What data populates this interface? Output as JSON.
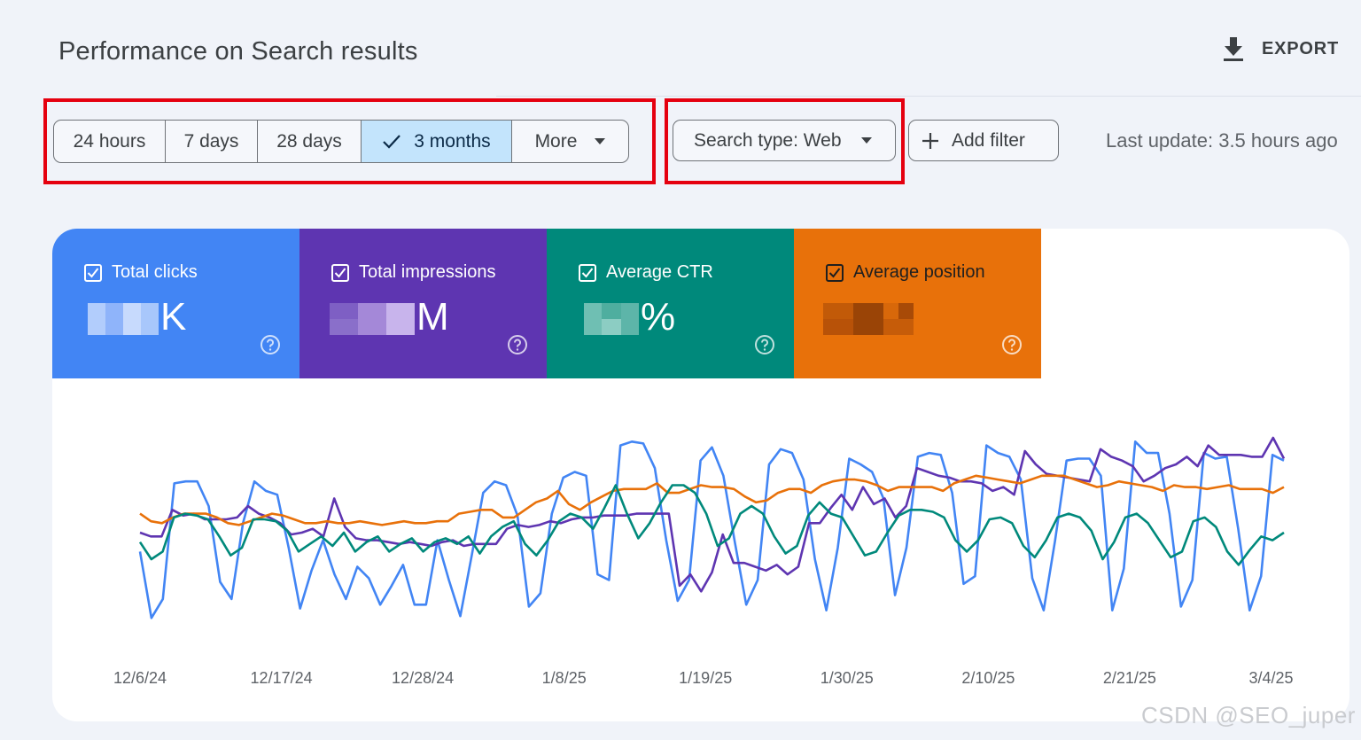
{
  "header": {
    "title": "Performance on Search results",
    "export_label": "EXPORT"
  },
  "date_range": {
    "options": [
      "24 hours",
      "7 days",
      "28 days",
      "3 months",
      "More"
    ],
    "selected": "3 months"
  },
  "filters": {
    "search_type": "Search type: Web",
    "add_filter": "Add filter",
    "last_update": "Last update: 3.5 hours ago"
  },
  "metrics": [
    {
      "label": "Total clicks",
      "suffix": "K",
      "color": "#4285f4",
      "checked": true
    },
    {
      "label": "Total impressions",
      "suffix": "M",
      "color": "#5e35b1",
      "checked": true
    },
    {
      "label": "Average CTR",
      "suffix": "%",
      "color": "#00897b",
      "checked": true
    },
    {
      "label": "Average position",
      "suffix": "",
      "color": "#e8710a",
      "checked": true
    }
  ],
  "chart_data": {
    "type": "line",
    "x_tick_labels": [
      "12/6/24",
      "12/17/24",
      "12/28/24",
      "1/8/25",
      "1/19/25",
      "1/30/25",
      "2/10/25",
      "2/21/25",
      "3/4/25"
    ],
    "x_start": "12/6/24",
    "x_end": "3/5/25",
    "y_axis_labels_shown": false,
    "grid": false,
    "series": [
      {
        "name": "Total clicks",
        "color": "#4285f4",
        "values": [
          0.4,
          0.05,
          0.15,
          0.76,
          0.77,
          0.77,
          0.64,
          0.24,
          0.15,
          0.55,
          0.77,
          0.72,
          0.7,
          0.42,
          0.1,
          0.3,
          0.46,
          0.28,
          0.15,
          0.32,
          0.26,
          0.12,
          0.22,
          0.33,
          0.12,
          0.12,
          0.46,
          0.25,
          0.06,
          0.38,
          0.71,
          0.77,
          0.75,
          0.59,
          0.11,
          0.18,
          0.6,
          0.79,
          0.82,
          0.8,
          0.28,
          0.25,
          0.96,
          0.98,
          0.97,
          0.84,
          0.46,
          0.14,
          0.25,
          0.88,
          0.95,
          0.8,
          0.45,
          0.12,
          0.25,
          0.86,
          0.94,
          0.92,
          0.78,
          0.36,
          0.09,
          0.42,
          0.89,
          0.86,
          0.82,
          0.68,
          0.17,
          0.42,
          0.9,
          0.92,
          0.91,
          0.71,
          0.23,
          0.27,
          0.96,
          0.92,
          0.9,
          0.78,
          0.26,
          0.09,
          0.46,
          0.88,
          0.89,
          0.89,
          0.8,
          0.09,
          0.31,
          0.98,
          0.92,
          0.92,
          0.6,
          0.11,
          0.25,
          0.92,
          0.89,
          0.9,
          0.52,
          0.09,
          0.27,
          0.91,
          0.88
        ]
      },
      {
        "name": "Total impressions",
        "color": "#5e35b1",
        "values": [
          0.5,
          0.48,
          0.48,
          0.62,
          0.59,
          0.6,
          0.57,
          0.57,
          0.57,
          0.58,
          0.64,
          0.6,
          0.58,
          0.55,
          0.49,
          0.5,
          0.52,
          0.48,
          0.68,
          0.53,
          0.47,
          0.46,
          0.46,
          0.45,
          0.44,
          0.45,
          0.44,
          0.43,
          0.45,
          0.46,
          0.43,
          0.44,
          0.44,
          0.44,
          0.52,
          0.54,
          0.53,
          0.54,
          0.56,
          0.55,
          0.57,
          0.58,
          0.58,
          0.59,
          0.59,
          0.59,
          0.6,
          0.6,
          0.6,
          0.6,
          0.22,
          0.28,
          0.19,
          0.29,
          0.49,
          0.34,
          0.34,
          0.32,
          0.3,
          0.33,
          0.28,
          0.32,
          0.55,
          0.55,
          0.63,
          0.7,
          0.62,
          0.74,
          0.65,
          0.68,
          0.58,
          0.64,
          0.84,
          0.82,
          0.8,
          0.79,
          0.77,
          0.77,
          0.76,
          0.72,
          0.74,
          0.7,
          0.93,
          0.86,
          0.81,
          0.8,
          0.79,
          0.78,
          0.77,
          0.94,
          0.9,
          0.88,
          0.85,
          0.77,
          0.8,
          0.84,
          0.86,
          0.9,
          0.85,
          0.96,
          0.91,
          0.91,
          0.91,
          0.9,
          0.9,
          1.0,
          0.89
        ]
      },
      {
        "name": "Average position",
        "color": "#e8710a",
        "values": [
          0.6,
          0.56,
          0.55,
          0.58,
          0.6,
          0.6,
          0.6,
          0.58,
          0.55,
          0.54,
          0.56,
          0.58,
          0.6,
          0.59,
          0.57,
          0.55,
          0.55,
          0.56,
          0.55,
          0.55,
          0.56,
          0.55,
          0.54,
          0.55,
          0.56,
          0.55,
          0.55,
          0.56,
          0.56,
          0.6,
          0.61,
          0.62,
          0.62,
          0.58,
          0.58,
          0.62,
          0.66,
          0.68,
          0.72,
          0.65,
          0.62,
          0.66,
          0.69,
          0.72,
          0.73,
          0.73,
          0.73,
          0.76,
          0.71,
          0.71,
          0.73,
          0.75,
          0.74,
          0.74,
          0.73,
          0.69,
          0.66,
          0.67,
          0.71,
          0.73,
          0.73,
          0.71,
          0.75,
          0.77,
          0.78,
          0.78,
          0.77,
          0.75,
          0.72,
          0.74,
          0.74,
          0.74,
          0.74,
          0.72,
          0.76,
          0.78,
          0.8,
          0.79,
          0.78,
          0.77,
          0.76,
          0.78,
          0.8,
          0.8,
          0.8,
          0.78,
          0.76,
          0.74,
          0.75,
          0.77,
          0.76,
          0.75,
          0.74,
          0.72,
          0.75,
          0.74,
          0.74,
          0.73,
          0.74,
          0.75,
          0.73,
          0.73,
          0.73,
          0.71,
          0.74
        ]
      },
      {
        "name": "Average CTR",
        "color": "#00897b",
        "values": [
          0.45,
          0.36,
          0.4,
          0.58,
          0.6,
          0.59,
          0.57,
          0.48,
          0.38,
          0.42,
          0.57,
          0.57,
          0.56,
          0.51,
          0.4,
          0.44,
          0.48,
          0.43,
          0.5,
          0.4,
          0.45,
          0.48,
          0.4,
          0.44,
          0.47,
          0.4,
          0.45,
          0.47,
          0.44,
          0.48,
          0.39,
          0.48,
          0.53,
          0.56,
          0.44,
          0.38,
          0.46,
          0.56,
          0.6,
          0.58,
          0.52,
          0.63,
          0.75,
          0.6,
          0.47,
          0.55,
          0.66,
          0.75,
          0.75,
          0.71,
          0.6,
          0.43,
          0.47,
          0.6,
          0.64,
          0.6,
          0.48,
          0.39,
          0.43,
          0.59,
          0.66,
          0.6,
          0.58,
          0.48,
          0.38,
          0.4,
          0.5,
          0.59,
          0.62,
          0.62,
          0.61,
          0.58,
          0.46,
          0.4,
          0.46,
          0.57,
          0.58,
          0.55,
          0.43,
          0.37,
          0.46,
          0.58,
          0.6,
          0.58,
          0.51,
          0.36,
          0.45,
          0.58,
          0.6,
          0.55,
          0.46,
          0.37,
          0.4,
          0.56,
          0.58,
          0.53,
          0.4,
          0.33,
          0.41,
          0.48,
          0.46,
          0.5
        ]
      }
    ]
  },
  "watermark": "CSDN @SEO_juper"
}
